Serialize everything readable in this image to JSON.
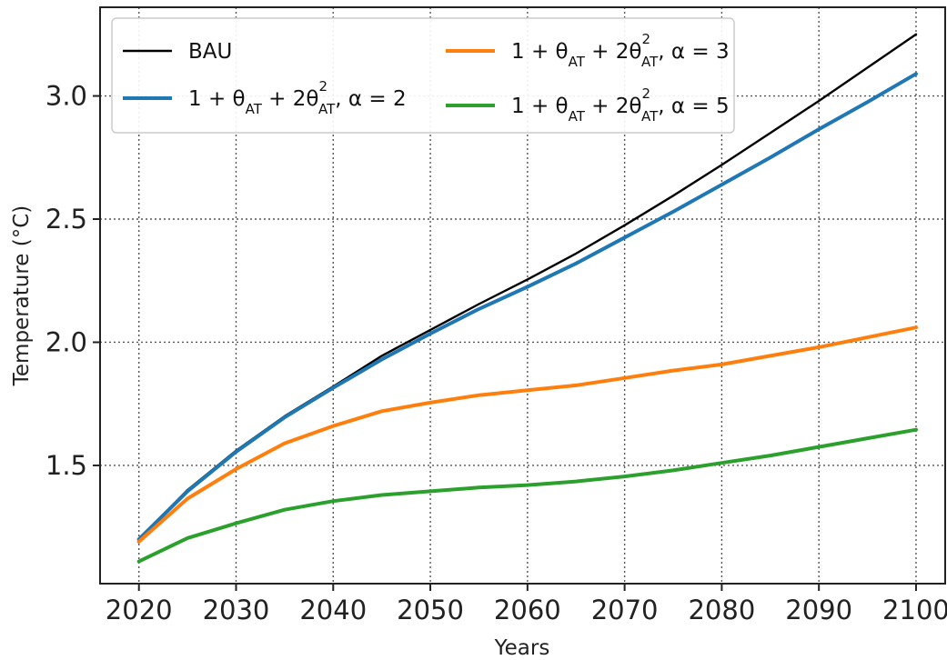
{
  "chart_data": {
    "type": "line",
    "xlabel": "Years",
    "ylabel": "Temperature (°C)",
    "xlim": [
      2016,
      2103
    ],
    "ylim": [
      1.02,
      3.36
    ],
    "xticks": [
      2020,
      2030,
      2040,
      2050,
      2060,
      2070,
      2080,
      2090,
      2100
    ],
    "yticks": [
      1.5,
      2.0,
      2.5,
      3.0
    ],
    "xtick_labels": [
      "2020",
      "2030",
      "2040",
      "2050",
      "2060",
      "2070",
      "2080",
      "2090",
      "2100"
    ],
    "ytick_labels": [
      "1.5",
      "2.0",
      "2.5",
      "3.0"
    ],
    "grid": true,
    "legend_position": "top-left",
    "legend_columns": 2,
    "x": [
      2020,
      2025,
      2030,
      2035,
      2040,
      2045,
      2050,
      2055,
      2060,
      2065,
      2070,
      2075,
      2080,
      2085,
      2090,
      2095,
      2100
    ],
    "series": [
      {
        "name": "BAU",
        "color": "#000000",
        "values": [
          1.2,
          1.4,
          1.56,
          1.7,
          1.82,
          1.945,
          2.05,
          2.155,
          2.255,
          2.36,
          2.475,
          2.595,
          2.72,
          2.85,
          2.98,
          3.115,
          3.25
        ]
      },
      {
        "name": "1 + θAT + 2θAT², α = 2",
        "color": "#1f77b4",
        "values": [
          1.2,
          1.395,
          1.555,
          1.695,
          1.815,
          1.93,
          2.035,
          2.135,
          2.225,
          2.32,
          2.425,
          2.53,
          2.64,
          2.75,
          2.865,
          2.975,
          3.09
        ]
      },
      {
        "name": "1 + θAT + 2θAT², α = 3",
        "color": "#ff7f0e",
        "values": [
          1.19,
          1.365,
          1.485,
          1.59,
          1.66,
          1.72,
          1.755,
          1.785,
          1.805,
          1.825,
          1.855,
          1.885,
          1.91,
          1.945,
          1.98,
          2.02,
          2.06
        ]
      },
      {
        "name": "1 + θAT + 2θAT², α = 5",
        "color": "#2ca02c",
        "values": [
          1.11,
          1.205,
          1.265,
          1.32,
          1.355,
          1.38,
          1.395,
          1.41,
          1.42,
          1.435,
          1.455,
          1.48,
          1.51,
          1.54,
          1.575,
          1.61,
          1.645
        ]
      }
    ],
    "legend": [
      {
        "label_main": "BAU",
        "parts": [],
        "color": "#000000"
      },
      {
        "parts": [
          [
            "1 + θ",
            ""
          ],
          [
            "AT",
            "sub"
          ],
          [
            " + 2θ",
            ""
          ],
          [
            "2",
            "sup"
          ],
          [
            "AT",
            "sub"
          ],
          [
            ", α = 2",
            ""
          ]
        ],
        "color": "#1f77b4"
      },
      {
        "parts": [
          [
            "1 + θ",
            ""
          ],
          [
            "AT",
            "sub"
          ],
          [
            " + 2θ",
            ""
          ],
          [
            "2",
            "sup"
          ],
          [
            "AT",
            "sub"
          ],
          [
            ", α = 3",
            ""
          ]
        ],
        "color": "#ff7f0e"
      },
      {
        "parts": [
          [
            "1 + θ",
            ""
          ],
          [
            "AT",
            "sub"
          ],
          [
            " + 2θ",
            ""
          ],
          [
            "2",
            "sup"
          ],
          [
            "AT",
            "sub"
          ],
          [
            ", α = 5",
            ""
          ]
        ],
        "color": "#2ca02c"
      }
    ]
  }
}
